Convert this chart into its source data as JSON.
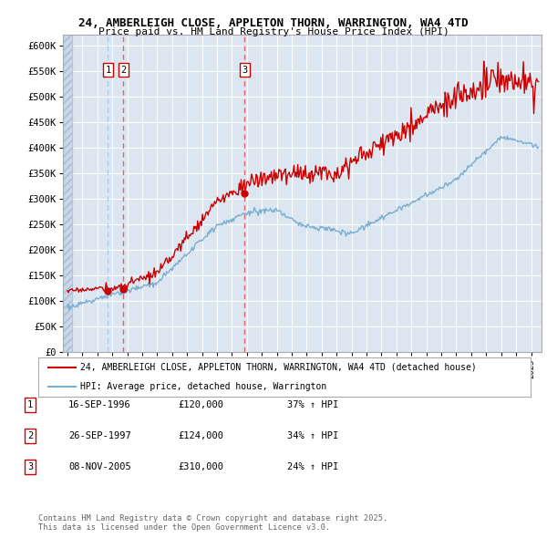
{
  "title1": "24, AMBERLEIGH CLOSE, APPLETON THORN, WARRINGTON, WA4 4TD",
  "title2": "Price paid vs. HM Land Registry's House Price Index (HPI)",
  "background_color": "#dce6f1",
  "plot_bg_color": "#dce6f1",
  "grid_color": "#ffffff",
  "red_line_color": "#cc0000",
  "blue_line_color": "#7aadcf",
  "sale_marker_color": "#cc0000",
  "dashed_red_color": "#e86060",
  "dashed_blue_color": "#aaccee",
  "yticks": [
    0,
    50000,
    100000,
    150000,
    200000,
    250000,
    300000,
    350000,
    400000,
    450000,
    500000,
    550000,
    600000
  ],
  "ytick_labels": [
    "£0",
    "£50K",
    "£100K",
    "£150K",
    "£200K",
    "£250K",
    "£300K",
    "£350K",
    "£400K",
    "£450K",
    "£500K",
    "£550K",
    "£600K"
  ],
  "xmin": 1993.7,
  "xmax": 2025.7,
  "ymin": 0,
  "ymax": 620000,
  "sales": [
    {
      "year": 1996.71,
      "price": 120000,
      "label": "1",
      "dashed": "blue"
    },
    {
      "year": 1997.73,
      "price": 124000,
      "label": "2",
      "dashed": "red"
    },
    {
      "year": 2005.85,
      "price": 310000,
      "label": "3",
      "dashed": "red"
    }
  ],
  "legend_house_label": "24, AMBERLEIGH CLOSE, APPLETON THORN, WARRINGTON, WA4 4TD (detached house)",
  "legend_hpi_label": "HPI: Average price, detached house, Warrington",
  "table_entries": [
    {
      "num": "1",
      "date": "16-SEP-1996",
      "price": "£120,000",
      "change": "37% ↑ HPI"
    },
    {
      "num": "2",
      "date": "26-SEP-1997",
      "price": "£124,000",
      "change": "34% ↑ HPI"
    },
    {
      "num": "3",
      "date": "08-NOV-2005",
      "price": "£310,000",
      "change": "24% ↑ HPI"
    }
  ],
  "footnote": "Contains HM Land Registry data © Crown copyright and database right 2025.\nThis data is licensed under the Open Government Licence v3.0."
}
